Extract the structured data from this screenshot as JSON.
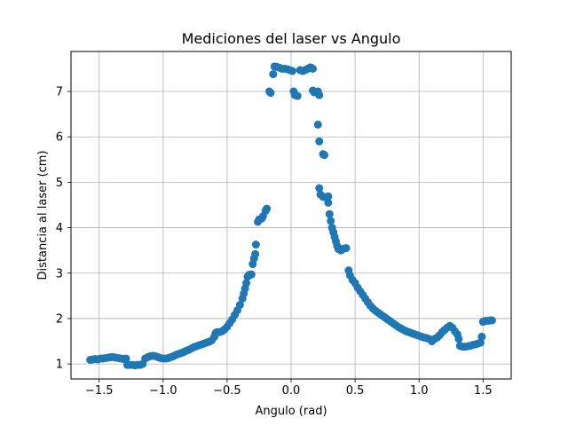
{
  "chart_data": {
    "type": "scatter",
    "title": "Mediciones del laser vs Angulo",
    "xlabel": "Angulo (rad)",
    "ylabel": "Distancia al laser (cm)",
    "xlim": [
      -1.72,
      1.72
    ],
    "ylim": [
      0.67,
      7.88
    ],
    "xticks": [
      -1.5,
      -1.0,
      -0.5,
      0.0,
      0.5,
      1.0,
      1.5
    ],
    "xtick_labels": [
      "−1.5",
      "−1.0",
      "−0.5",
      "0.0",
      "0.5",
      "1.0",
      "1.5"
    ],
    "yticks": [
      1,
      2,
      3,
      4,
      5,
      6,
      7
    ],
    "ytick_labels": [
      "1",
      "2",
      "3",
      "4",
      "5",
      "6",
      "7"
    ],
    "grid": true,
    "color": "#1f77b4",
    "series": [
      {
        "points": [
          [
            -1.57,
            1.09
          ],
          [
            -1.55,
            1.1
          ],
          [
            -1.53,
            1.11
          ],
          [
            -1.51,
            1.1
          ],
          [
            -1.49,
            1.12
          ],
          [
            -1.47,
            1.12
          ],
          [
            -1.45,
            1.13
          ],
          [
            -1.43,
            1.14
          ],
          [
            -1.41,
            1.15
          ],
          [
            -1.39,
            1.15
          ],
          [
            -1.37,
            1.14
          ],
          [
            -1.35,
            1.13
          ],
          [
            -1.33,
            1.12
          ],
          [
            -1.31,
            1.11
          ],
          [
            -1.29,
            1.12
          ],
          [
            -1.28,
            0.98
          ],
          [
            -1.26,
            0.98
          ],
          [
            -1.24,
            0.98
          ],
          [
            -1.22,
            0.97
          ],
          [
            -1.2,
            0.98
          ],
          [
            -1.18,
            0.98
          ],
          [
            -1.16,
            1.0
          ],
          [
            -1.14,
            1.12
          ],
          [
            -1.12,
            1.15
          ],
          [
            -1.1,
            1.17
          ],
          [
            -1.08,
            1.18
          ],
          [
            -1.06,
            1.17
          ],
          [
            -1.04,
            1.15
          ],
          [
            -1.02,
            1.13
          ],
          [
            -1.0,
            1.12
          ],
          [
            -0.98,
            1.12
          ],
          [
            -0.96,
            1.13
          ],
          [
            -0.94,
            1.15
          ],
          [
            -0.92,
            1.17
          ],
          [
            -0.9,
            1.2
          ],
          [
            -0.88,
            1.22
          ],
          [
            -0.86,
            1.24
          ],
          [
            -0.84,
            1.26
          ],
          [
            -0.82,
            1.29
          ],
          [
            -0.8,
            1.31
          ],
          [
            -0.78,
            1.34
          ],
          [
            -0.76,
            1.37
          ],
          [
            -0.74,
            1.39
          ],
          [
            -0.72,
            1.41
          ],
          [
            -0.7,
            1.43
          ],
          [
            -0.68,
            1.45
          ],
          [
            -0.66,
            1.47
          ],
          [
            -0.64,
            1.49
          ],
          [
            -0.62,
            1.52
          ],
          [
            -0.6,
            1.6
          ],
          [
            -0.59,
            1.68
          ],
          [
            -0.58,
            1.7
          ],
          [
            -0.56,
            1.7
          ],
          [
            -0.54,
            1.72
          ],
          [
            -0.52,
            1.76
          ],
          [
            -0.5,
            1.82
          ],
          [
            -0.48,
            1.9
          ],
          [
            -0.46,
            1.98
          ],
          [
            -0.44,
            2.08
          ],
          [
            -0.42,
            2.18
          ],
          [
            -0.4,
            2.3
          ],
          [
            -0.38,
            2.44
          ],
          [
            -0.37,
            2.55
          ],
          [
            -0.36,
            2.66
          ],
          [
            -0.35,
            2.78
          ],
          [
            -0.34,
            2.92
          ],
          [
            -0.33,
            2.96
          ],
          [
            -0.31,
            2.97
          ],
          [
            -0.3,
            3.2
          ],
          [
            -0.29,
            3.32
          ],
          [
            -0.28,
            3.42
          ],
          [
            -0.275,
            3.63
          ],
          [
            -0.26,
            4.13
          ],
          [
            -0.25,
            4.18
          ],
          [
            -0.23,
            4.2
          ],
          [
            -0.22,
            4.25
          ],
          [
            -0.2,
            4.37
          ],
          [
            -0.19,
            4.42
          ],
          [
            -0.17,
            7.0
          ],
          [
            -0.16,
            6.97
          ],
          [
            -0.14,
            7.38
          ],
          [
            -0.13,
            7.55
          ],
          [
            -0.11,
            7.54
          ],
          [
            -0.09,
            7.52
          ],
          [
            -0.07,
            7.5
          ],
          [
            -0.05,
            7.5
          ],
          [
            -0.03,
            7.49
          ],
          [
            -0.01,
            7.47
          ],
          [
            0.01,
            7.45
          ],
          [
            0.02,
            7.0
          ],
          [
            0.03,
            6.92
          ],
          [
            0.05,
            6.9
          ],
          [
            0.07,
            7.47
          ],
          [
            0.09,
            7.45
          ],
          [
            0.11,
            7.47
          ],
          [
            0.13,
            7.5
          ],
          [
            0.15,
            7.53
          ],
          [
            0.16,
            7.52
          ],
          [
            0.17,
            7.5
          ],
          [
            0.17,
            7.02
          ],
          [
            0.18,
            6.98
          ],
          [
            0.2,
            6.98
          ],
          [
            0.21,
            7.0
          ],
          [
            0.22,
            6.92
          ],
          [
            0.21,
            6.27
          ],
          [
            0.22,
            5.9
          ],
          [
            0.25,
            5.62
          ],
          [
            0.26,
            5.6
          ],
          [
            0.22,
            4.87
          ],
          [
            0.23,
            4.73
          ],
          [
            0.25,
            4.68
          ],
          [
            0.27,
            4.67
          ],
          [
            0.29,
            4.69
          ],
          [
            0.29,
            4.55
          ],
          [
            0.3,
            4.3
          ],
          [
            0.31,
            4.15
          ],
          [
            0.32,
            4.0
          ],
          [
            0.33,
            3.9
          ],
          [
            0.34,
            3.8
          ],
          [
            0.35,
            3.7
          ],
          [
            0.36,
            3.6
          ],
          [
            0.37,
            3.53
          ],
          [
            0.39,
            3.5
          ],
          [
            0.41,
            3.54
          ],
          [
            0.43,
            3.55
          ],
          [
            0.45,
            3.06
          ],
          [
            0.46,
            2.95
          ],
          [
            0.48,
            2.85
          ],
          [
            0.5,
            2.78
          ],
          [
            0.52,
            2.68
          ],
          [
            0.54,
            2.6
          ],
          [
            0.56,
            2.52
          ],
          [
            0.58,
            2.44
          ],
          [
            0.6,
            2.36
          ],
          [
            0.62,
            2.28
          ],
          [
            0.64,
            2.22
          ],
          [
            0.66,
            2.17
          ],
          [
            0.68,
            2.13
          ],
          [
            0.7,
            2.09
          ],
          [
            0.72,
            2.05
          ],
          [
            0.74,
            2.01
          ],
          [
            0.76,
            1.97
          ],
          [
            0.78,
            1.93
          ],
          [
            0.8,
            1.89
          ],
          [
            0.82,
            1.85
          ],
          [
            0.84,
            1.81
          ],
          [
            0.86,
            1.78
          ],
          [
            0.88,
            1.75
          ],
          [
            0.9,
            1.72
          ],
          [
            0.92,
            1.7
          ],
          [
            0.94,
            1.68
          ],
          [
            0.96,
            1.66
          ],
          [
            0.98,
            1.64
          ],
          [
            1.0,
            1.62
          ],
          [
            1.02,
            1.6
          ],
          [
            1.04,
            1.58
          ],
          [
            1.06,
            1.57
          ],
          [
            1.08,
            1.55
          ],
          [
            1.1,
            1.5
          ],
          [
            1.12,
            1.55
          ],
          [
            1.14,
            1.58
          ],
          [
            1.16,
            1.63
          ],
          [
            1.18,
            1.7
          ],
          [
            1.2,
            1.75
          ],
          [
            1.22,
            1.8
          ],
          [
            1.24,
            1.84
          ],
          [
            1.26,
            1.8
          ],
          [
            1.28,
            1.72
          ],
          [
            1.3,
            1.65
          ],
          [
            1.31,
            1.55
          ],
          [
            1.32,
            1.4
          ],
          [
            1.34,
            1.38
          ],
          [
            1.36,
            1.38
          ],
          [
            1.38,
            1.39
          ],
          [
            1.4,
            1.4
          ],
          [
            1.42,
            1.42
          ],
          [
            1.44,
            1.43
          ],
          [
            1.46,
            1.45
          ],
          [
            1.48,
            1.47
          ],
          [
            1.49,
            1.6
          ],
          [
            1.5,
            1.93
          ],
          [
            1.52,
            1.95
          ],
          [
            1.54,
            1.95
          ],
          [
            1.56,
            1.96
          ],
          [
            1.57,
            1.96
          ]
        ]
      }
    ]
  }
}
